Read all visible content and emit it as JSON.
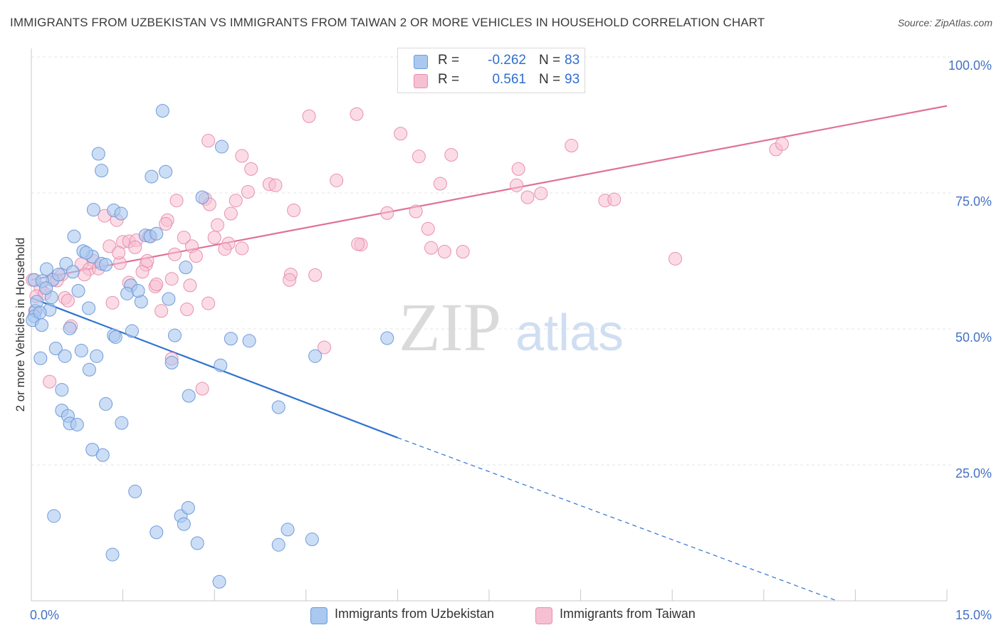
{
  "header": {
    "title": "IMMIGRANTS FROM UZBEKISTAN VS IMMIGRANTS FROM TAIWAN 2 OR MORE VEHICLES IN HOUSEHOLD CORRELATION CHART",
    "source": "Source: ZipAtlas.com"
  },
  "watermark": {
    "zip": "ZIP",
    "atlas": "atlas"
  },
  "legend": {
    "uzbekistan": {
      "r_label": "R =",
      "r_value": "-0.262",
      "n_label": "N =",
      "n_value": "83"
    },
    "taiwan": {
      "r_label": "R =",
      "r_value": "0.561",
      "n_label": "N =",
      "n_value": "93"
    }
  },
  "bottom_legend": {
    "uzbekistan": "Immigrants from Uzbekistan",
    "taiwan": "Immigrants from Taiwan"
  },
  "colors": {
    "uzbekistan_fill": "#aac8f0",
    "uzbekistan_stroke": "#6f9bd8",
    "uzbekistan_line": "#2f72d0",
    "taiwan_fill": "#f7bfd2",
    "taiwan_stroke": "#e890ad",
    "taiwan_line": "#e0719a",
    "axis_label": "#4472c4",
    "grid": "#e4e4e4"
  },
  "chart_data": {
    "type": "scatter",
    "title": "IMMIGRANTS FROM UZBEKISTAN VS IMMIGRANTS FROM TAIWAN 2 OR MORE VEHICLES IN HOUSEHOLD CORRELATION CHART",
    "xlabel": "",
    "ylabel": "2 or more Vehicles in Household",
    "xlim": [
      0,
      15
    ],
    "ylim": [
      0,
      100
    ],
    "x_tick_labels": [
      "0.0%",
      "15.0%"
    ],
    "y_ticks": [
      25,
      50,
      75,
      100
    ],
    "y_tick_labels": [
      "25.0%",
      "50.0%",
      "75.0%",
      "100.0%"
    ],
    "grid": true,
    "legend_position": "top-center",
    "series": [
      {
        "name": "Immigrants from Uzbekistan",
        "r": -0.262,
        "n": 83,
        "trend": {
          "x": [
            0.0,
            6.0
          ],
          "y": [
            55.7,
            30.0
          ]
        },
        "trend_extension": {
          "x": [
            6.0,
            13.2
          ],
          "y": [
            30.0,
            0.0
          ]
        },
        "points": [
          [
            2.15,
            90.1
          ],
          [
            1.1,
            82.2
          ],
          [
            1.15,
            79.1
          ],
          [
            2.2,
            78.9
          ],
          [
            1.97,
            78.0
          ],
          [
            3.12,
            83.5
          ],
          [
            2.8,
            74.2
          ],
          [
            1.02,
            71.9
          ],
          [
            1.35,
            71.8
          ],
          [
            1.47,
            71.2
          ],
          [
            0.7,
            67.0
          ],
          [
            1.87,
            67.2
          ],
          [
            1.95,
            67.0
          ],
          [
            1.0,
            63.3
          ],
          [
            0.85,
            64.3
          ],
          [
            0.9,
            64.0
          ],
          [
            0.57,
            62.0
          ],
          [
            1.15,
            62.0
          ],
          [
            1.22,
            61.8
          ],
          [
            0.25,
            61.0
          ],
          [
            2.53,
            61.3
          ],
          [
            0.05,
            59.0
          ],
          [
            0.35,
            59.0
          ],
          [
            0.18,
            58.8
          ],
          [
            1.63,
            58.0
          ],
          [
            0.77,
            57.0
          ],
          [
            1.57,
            56.5
          ],
          [
            0.33,
            55.8
          ],
          [
            1.8,
            55.0
          ],
          [
            2.25,
            55.5
          ],
          [
            0.07,
            53.3
          ],
          [
            0.05,
            52.3
          ],
          [
            0.3,
            53.5
          ],
          [
            0.94,
            53.8
          ],
          [
            0.02,
            51.6
          ],
          [
            0.17,
            50.7
          ],
          [
            0.63,
            50.1
          ],
          [
            1.65,
            49.6
          ],
          [
            1.35,
            48.8
          ],
          [
            1.38,
            48.5
          ],
          [
            2.35,
            48.8
          ],
          [
            3.27,
            48.2
          ],
          [
            3.57,
            47.8
          ],
          [
            5.83,
            48.3
          ],
          [
            0.4,
            46.4
          ],
          [
            0.82,
            46.0
          ],
          [
            0.15,
            44.6
          ],
          [
            0.55,
            45.0
          ],
          [
            1.07,
            45.0
          ],
          [
            2.3,
            43.8
          ],
          [
            3.1,
            43.3
          ],
          [
            4.65,
            45.0
          ],
          [
            0.95,
            42.5
          ],
          [
            0.5,
            38.8
          ],
          [
            2.58,
            37.7
          ],
          [
            1.22,
            36.2
          ],
          [
            4.05,
            35.6
          ],
          [
            0.5,
            35.0
          ],
          [
            0.6,
            34.0
          ],
          [
            0.63,
            32.6
          ],
          [
            0.75,
            32.4
          ],
          [
            1.48,
            32.7
          ],
          [
            1.0,
            27.8
          ],
          [
            1.17,
            26.8
          ],
          [
            1.7,
            20.1
          ],
          [
            0.37,
            15.6
          ],
          [
            2.45,
            15.6
          ],
          [
            2.5,
            14.1
          ],
          [
            2.57,
            17.1
          ],
          [
            2.05,
            12.6
          ],
          [
            4.2,
            13.1
          ],
          [
            1.33,
            8.5
          ],
          [
            2.72,
            10.6
          ],
          [
            4.05,
            10.3
          ],
          [
            4.6,
            11.3
          ],
          [
            3.08,
            3.5
          ],
          [
            0.09,
            55.0
          ],
          [
            0.24,
            57.5
          ],
          [
            0.14,
            53.0
          ],
          [
            0.45,
            60.0
          ],
          [
            0.68,
            60.5
          ],
          [
            1.75,
            57.0
          ],
          [
            2.05,
            67.5
          ]
        ]
      },
      {
        "name": "Immigrants from Taiwan",
        "r": 0.561,
        "n": 93,
        "trend": {
          "x": [
            0.0,
            15.0
          ],
          "y": [
            59.0,
            91.0
          ]
        },
        "points": [
          [
            4.55,
            89.1
          ],
          [
            5.33,
            89.5
          ],
          [
            2.9,
            84.6
          ],
          [
            6.05,
            85.9
          ],
          [
            12.2,
            83.0
          ],
          [
            12.3,
            84.0
          ],
          [
            8.85,
            83.7
          ],
          [
            3.45,
            81.8
          ],
          [
            6.35,
            81.7
          ],
          [
            6.88,
            82.0
          ],
          [
            3.6,
            79.4
          ],
          [
            7.98,
            79.4
          ],
          [
            5.0,
            77.3
          ],
          [
            3.9,
            76.6
          ],
          [
            4.0,
            76.4
          ],
          [
            6.7,
            76.7
          ],
          [
            7.95,
            76.4
          ],
          [
            3.55,
            75.2
          ],
          [
            8.35,
            74.9
          ],
          [
            8.13,
            74.2
          ],
          [
            9.4,
            73.6
          ],
          [
            9.55,
            73.8
          ],
          [
            2.38,
            73.6
          ],
          [
            2.85,
            73.9
          ],
          [
            3.35,
            73.6
          ],
          [
            2.92,
            72.9
          ],
          [
            4.3,
            71.8
          ],
          [
            5.83,
            71.3
          ],
          [
            6.3,
            71.6
          ],
          [
            3.27,
            71.2
          ],
          [
            1.2,
            70.8
          ],
          [
            1.4,
            70.0
          ],
          [
            2.23,
            70.0
          ],
          [
            2.2,
            69.3
          ],
          [
            3.05,
            69.1
          ],
          [
            6.5,
            68.4
          ],
          [
            1.5,
            66.0
          ],
          [
            1.6,
            66.1
          ],
          [
            1.72,
            66.3
          ],
          [
            2.5,
            66.8
          ],
          [
            1.93,
            67.1
          ],
          [
            3.23,
            65.7
          ],
          [
            5.4,
            65.5
          ],
          [
            1.28,
            65.2
          ],
          [
            1.7,
            65.0
          ],
          [
            2.63,
            65.2
          ],
          [
            3.17,
            64.7
          ],
          [
            3.45,
            64.8
          ],
          [
            6.55,
            64.9
          ],
          [
            6.77,
            64.2
          ],
          [
            7.07,
            64.2
          ],
          [
            10.55,
            62.9
          ],
          [
            1.02,
            62.5
          ],
          [
            1.45,
            62.1
          ],
          [
            0.82,
            61.9
          ],
          [
            1.88,
            61.8
          ],
          [
            2.35,
            63.7
          ],
          [
            2.7,
            63.4
          ],
          [
            1.43,
            64.0
          ],
          [
            0.95,
            61.0
          ],
          [
            1.1,
            61.1
          ],
          [
            1.82,
            60.5
          ],
          [
            0.87,
            60.0
          ],
          [
            4.25,
            60.0
          ],
          [
            4.65,
            59.9
          ],
          [
            0.5,
            60.0
          ],
          [
            0.35,
            59.1
          ],
          [
            2.3,
            59.2
          ],
          [
            4.23,
            59.0
          ],
          [
            0.42,
            58.9
          ],
          [
            1.6,
            58.5
          ],
          [
            2.03,
            57.8
          ],
          [
            2.05,
            58.2
          ],
          [
            2.6,
            58.0
          ],
          [
            0.15,
            57.5
          ],
          [
            0.08,
            56.0
          ],
          [
            0.22,
            56.5
          ],
          [
            0.55,
            55.7
          ],
          [
            0.6,
            55.2
          ],
          [
            1.33,
            54.8
          ],
          [
            2.9,
            54.7
          ],
          [
            2.55,
            53.6
          ],
          [
            2.13,
            53.3
          ],
          [
            0.65,
            50.5
          ],
          [
            4.8,
            46.6
          ],
          [
            2.3,
            44.5
          ],
          [
            2.8,
            39.0
          ],
          [
            0.3,
            40.3
          ],
          [
            0.02,
            59.0
          ],
          [
            0.06,
            53.3
          ],
          [
            1.9,
            62.5
          ],
          [
            5.35,
            65.6
          ],
          [
            3.0,
            66.8
          ]
        ]
      }
    ]
  }
}
